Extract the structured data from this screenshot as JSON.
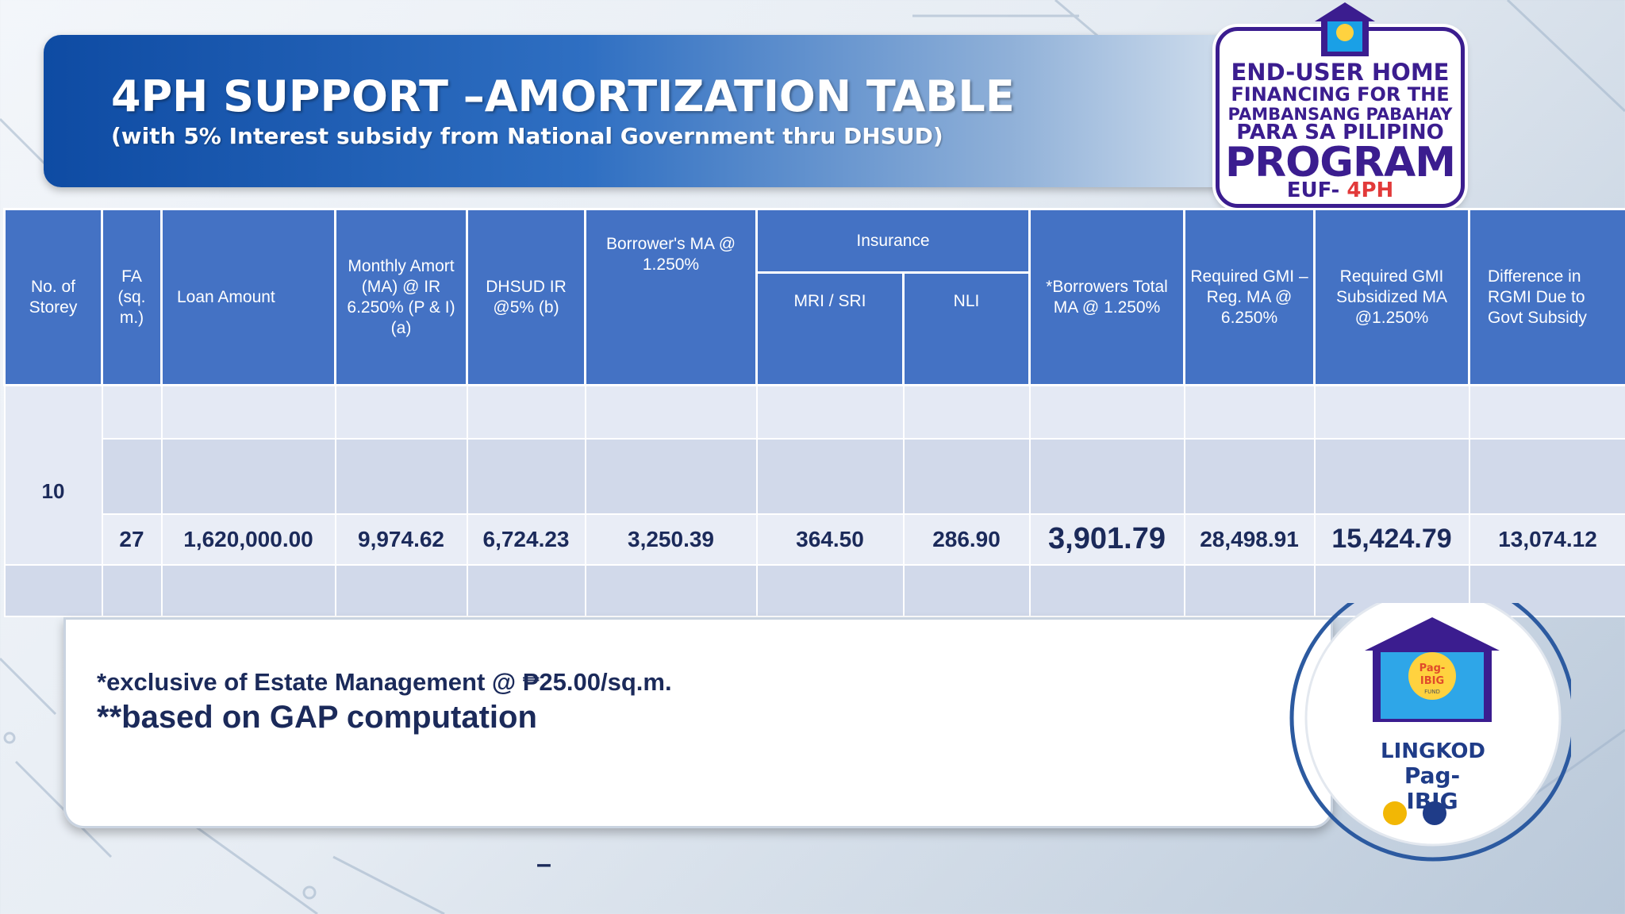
{
  "title": {
    "main": "4PH SUPPORT –AMORTIZATION TABLE",
    "sub": "(with 5% Interest subsidy from National Government thru DHSUD)"
  },
  "program_logo": {
    "line1": "END-USER HOME",
    "line2": "FINANCING FOR THE",
    "line3": "PAMBANSANG PABAHAY",
    "line4": "PARA SA PILIPINO",
    "line5": "PROGRAM",
    "line6_prefix": "EUF- ",
    "line6_accent": "4PH",
    "house_text": "Pag-IBIG"
  },
  "table": {
    "headers": {
      "storey": "No.  of Storey",
      "fa": "FA (sq. m.)",
      "loan": "Loan Amount",
      "monthly_amort": "Monthly Amort (MA) @ IR 6.250% (P & I) (a)",
      "dhsud": "DHSUD IR @5% (b)",
      "borrower_ma": "Borrower's MA @ 1.250%",
      "insurance": "Insurance",
      "mri": "MRI /  SRI",
      "nli": "NLI",
      "total_ma": "*Borrowers Total MA @ 1.250%",
      "gmi_reg": "Required GMI –Reg. MA @ 6.250%",
      "gmi_sub": "Required GMI Subsidized MA @1.250%",
      "difference": "Difference  in RGMI  Due  to Govt Subsidy"
    },
    "row": {
      "storey": "10",
      "fa": "27",
      "loan": "1,620,000.00",
      "monthly_amort": "9,974.62",
      "dhsud": "6,724.23",
      "borrower_ma": "3,250.39",
      "mri": "364.50",
      "nli": "286.90",
      "total_ma": "3,901.79",
      "gmi_reg": "28,498.91",
      "gmi_sub": "15,424.79",
      "difference": "13,074.12"
    }
  },
  "notes": {
    "note1": "*exclusive of Estate Management @ ₱25.00/sq.m.",
    "note2": "**based on GAP computation",
    "dash": "–"
  },
  "lingkod_logo": {
    "house_line1": "Pag-",
    "house_line2": "IBIG",
    "house_line3": "FUND",
    "line1": "LINGKOD",
    "line2": "Pag-IBIG"
  },
  "colors": {
    "header_blue": "#4472c4",
    "banner_blue": "#0e4ba3",
    "logo_purple": "#3b1d8f",
    "text_navy": "#1b2a5a"
  }
}
